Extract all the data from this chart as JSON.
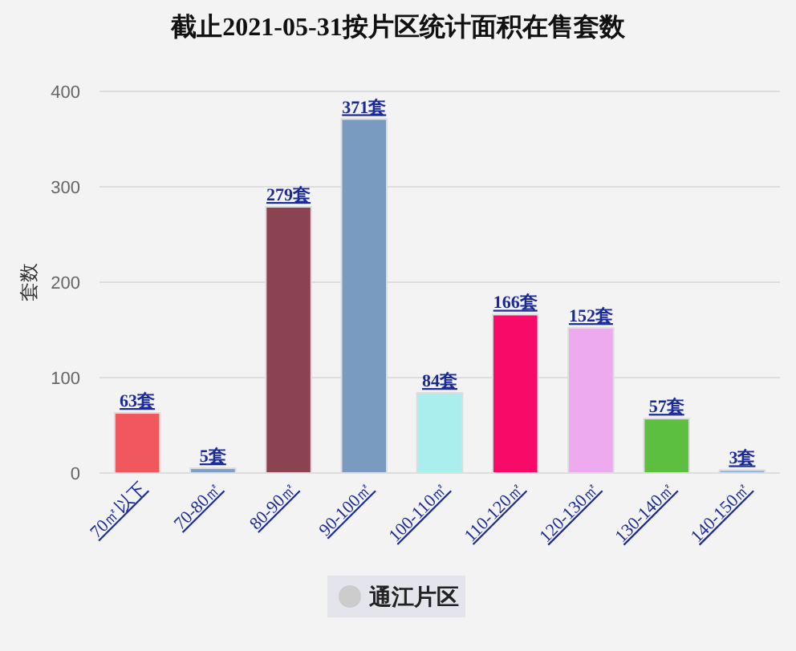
{
  "chart_data": {
    "type": "bar",
    "title": "截止2021-05-31按片区统计面积在售套数",
    "ylabel": "套数",
    "categories": [
      "70㎡以下",
      "70-80㎡",
      "80-90㎡",
      "90-100㎡",
      "100-110㎡",
      "110-120㎡",
      "120-130㎡",
      "130-140㎡",
      "140-150㎡"
    ],
    "series": [
      {
        "name": "通江片区",
        "color": "#cccccc",
        "colors": [
          "#f0585e",
          "#7b9fc9",
          "#8b4352",
          "#7a9bc0",
          "#aaeeed",
          "#f80a68",
          "#eeaaee",
          "#5cbf3f",
          "#87aee0"
        ],
        "values": [
          63,
          5,
          279,
          371,
          84,
          166,
          152,
          57,
          3
        ],
        "value_labels": [
          "63套",
          "5套",
          "279套",
          "371套",
          "84套",
          "166套",
          "152套",
          "57套",
          "3套"
        ]
      }
    ],
    "ylim": [
      0,
      400
    ],
    "yticks": [
      0,
      100,
      200,
      300,
      400
    ],
    "grid": "y",
    "legend": "bottom"
  }
}
